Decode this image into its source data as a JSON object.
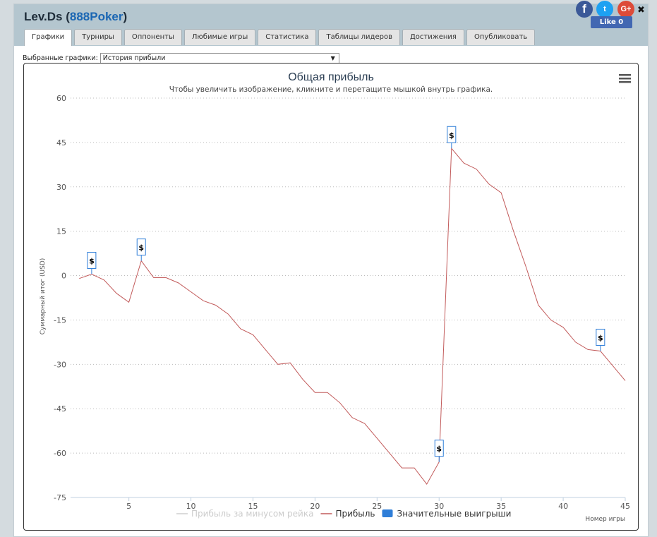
{
  "header": {
    "player_name": "Lev.Ds",
    "network": "888Poker",
    "tabs": [
      {
        "label": "Графики",
        "active": true
      },
      {
        "label": "Турниры"
      },
      {
        "label": "Оппоненты"
      },
      {
        "label": "Любимые игры"
      },
      {
        "label": "Статистика"
      },
      {
        "label": "Таблицы лидеров"
      },
      {
        "label": "Достижения"
      },
      {
        "label": "Опубликовать"
      }
    ],
    "social": {
      "facebook_glyph": "f",
      "twitter_glyph": "t",
      "google_glyph": "G+",
      "close_glyph": "✖",
      "like_label": "Like 0"
    }
  },
  "selector": {
    "label": "Выбранные графики:",
    "selected": "История прибыли",
    "arrow": "▼"
  },
  "menu_icon": "hamburger-menu-icon",
  "chart_data": {
    "type": "line",
    "title": "Общая прибыль",
    "subtitle": "Чтобы увеличить изображение, кликните и перетащите мышкой внутрь графика.",
    "xlabel": "Номер игры",
    "ylabel": "Суммарный итог (USD)",
    "xlim": [
      0.3,
      45
    ],
    "ylim": [
      -75,
      60
    ],
    "xticks": [
      5,
      10,
      15,
      20,
      25,
      30,
      35,
      40,
      45
    ],
    "yticks": [
      60,
      45,
      30,
      15,
      0,
      -15,
      -30,
      -45,
      -60,
      -75
    ],
    "grid": "horizontal-dotted",
    "legend_position": "bottom-center",
    "series": [
      {
        "name": "Прибыль за минусом рейка",
        "color": "#cfcfcf",
        "visible": false,
        "x": [],
        "y": []
      },
      {
        "name": "Прибыль",
        "color": "#c25b5b",
        "visible": true,
        "x": [
          1,
          2,
          3,
          4,
          5,
          6,
          7,
          8,
          9,
          10,
          11,
          12,
          13,
          14,
          15,
          16,
          17,
          18,
          19,
          20,
          21,
          22,
          23,
          24,
          25,
          26,
          27,
          28,
          29,
          30,
          31,
          32,
          33,
          34,
          35,
          36,
          37,
          38,
          39,
          40,
          41,
          42,
          43,
          44,
          45
        ],
        "y": [
          -1,
          0.5,
          -1.5,
          -6,
          -9,
          5,
          -0.7,
          -0.7,
          -2.5,
          -5.5,
          -8.5,
          -10,
          -13,
          -18,
          -20,
          -25,
          -30,
          -29.5,
          -35,
          -39.5,
          -39.5,
          -43,
          -48,
          -50,
          -55,
          -60,
          -65,
          -65,
          -70.5,
          -63,
          43,
          38,
          36,
          31,
          28,
          15,
          3,
          -10,
          -15,
          -17.5,
          -22.5,
          -25,
          -25.5,
          -30.5,
          -35.5
        ]
      },
      {
        "name": "Значительные выигрыши",
        "color": "#2f7ed8",
        "marker": "flag",
        "marker_text": "$",
        "x": [
          2,
          6,
          30,
          31,
          43
        ],
        "y": [
          0.5,
          5,
          -63,
          43,
          -25.5
        ]
      }
    ]
  }
}
